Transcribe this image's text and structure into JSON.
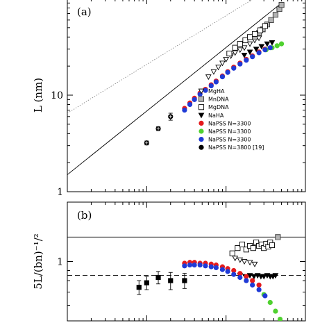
{
  "chart_data": [
    {
      "panel_label": "(a)",
      "type": "scatter",
      "ylabel": "L (nm)",
      "xlabel": "",
      "x_scale": "log",
      "y_scale": "log",
      "xlim": [
        1,
        1000
      ],
      "ylim": [
        1,
        100
      ],
      "y_ticks": [
        "1",
        "10"
      ],
      "grid": false,
      "legend_placement": "center-right",
      "reference_lines": [
        {
          "style": "solid",
          "color": "#000000",
          "points": [
            [
              1,
              1.5
            ],
            [
              500,
              90
            ]
          ]
        },
        {
          "style": "dotted",
          "color": "#888888",
          "points": [
            [
              1,
              6.5
            ],
            [
              270,
              110
            ]
          ]
        }
      ],
      "series": [
        {
          "name": "MgHA",
          "marker": "triangle-down-open",
          "color": "#000000",
          "x": [
            60,
            70,
            80,
            90,
            100,
            115,
            130,
            150,
            170,
            200,
            230,
            260
          ],
          "y": [
            15.5,
            17.5,
            19.5,
            21.5,
            23.5,
            25.5,
            27.5,
            29.5,
            31,
            34,
            37,
            39
          ]
        },
        {
          "name": "MnDNA",
          "marker": "square-hatched",
          "color": "#555555",
          "x": [
            230,
            260,
            290,
            330,
            370,
            420,
            470,
            500
          ],
          "y": [
            40,
            44,
            48,
            54,
            60,
            68,
            78,
            86
          ]
        },
        {
          "name": "MgDNA",
          "marker": "square-open",
          "color": "#000000",
          "x": [
            110,
            130,
            150,
            175,
            200,
            230,
            270,
            310
          ],
          "y": [
            27,
            31,
            34,
            37,
            40,
            43,
            47,
            52
          ]
        },
        {
          "name": "NaHA",
          "marker": "triangle-down-filled",
          "color": "#000000",
          "x": [
            170,
            200,
            240,
            280,
            330,
            380
          ],
          "y": [
            26,
            28,
            30,
            32,
            34,
            35
          ]
        },
        {
          "name": "NaPSS N=3300",
          "marker": "circle-filled",
          "color": "#e41a1c",
          "x": [
            30,
            35,
            40,
            47,
            55,
            65,
            75,
            90,
            105,
            125,
            150,
            180,
            215,
            260,
            310
          ],
          "y": [
            7.3,
            8.3,
            9.3,
            10.5,
            11.5,
            12.8,
            14,
            15.8,
            17.5,
            19.5,
            21.5,
            23.5,
            25.5,
            28,
            30
          ]
        },
        {
          "name": "NaPSS N=3300",
          "marker": "circle-filled",
          "color": "#4fd12f",
          "x": [
            320,
            380,
            440,
            500
          ],
          "y": [
            29.5,
            31,
            32.5,
            34
          ]
        },
        {
          "name": "NaPSS N=3300",
          "marker": "circle-filled",
          "color": "#1f3ad6",
          "x": [
            30,
            35,
            40,
            47,
            55,
            65,
            75,
            90,
            105,
            125,
            150,
            180,
            215,
            260,
            310,
            360
          ],
          "y": [
            7,
            8,
            9,
            10.2,
            11.2,
            12.5,
            13.7,
            15.5,
            17.2,
            19,
            21,
            23,
            25,
            27.5,
            29.5,
            31
          ]
        },
        {
          "name": "NaPSS N=3800 [19]",
          "marker": "circle-filled",
          "color": "#000000",
          "x": [
            10,
            14,
            20
          ],
          "y": [
            3.2,
            4.5,
            6.0
          ],
          "error_y": [
            0.15,
            0.2,
            0.5
          ]
        }
      ]
    },
    {
      "panel_label": "(b)",
      "type": "scatter",
      "ylabel": "5L/(bn)⁻¹/²",
      "xlabel": "",
      "x_scale": "log",
      "y_scale": "log",
      "xlim": [
        1,
        1000
      ],
      "ylim": [
        0.5,
        2
      ],
      "y_ticks": [
        "1"
      ],
      "grid": false,
      "reference_lines": [
        {
          "style": "solid",
          "color": "#000000",
          "y": 1.33
        },
        {
          "style": "dashed",
          "color": "#000000",
          "y": 0.85
        }
      ],
      "series": [
        {
          "name": "MgHA",
          "marker": "triangle-down-open",
          "color": "#000000",
          "x": [
            130,
            150,
            170,
            200,
            230
          ],
          "y": [
            1.04,
            1.02,
            1.0,
            0.99,
            0.97
          ]
        },
        {
          "name": "MnDNA",
          "marker": "square-hatched",
          "color": "#555555",
          "x": [
            450
          ],
          "y": [
            1.33
          ]
        },
        {
          "name": "MgDNA",
          "marker": "square-open",
          "color": "#000000",
          "x": [
            120,
            140,
            160,
            180,
            200,
            220,
            240,
            260,
            280,
            300,
            320,
            340,
            360,
            380
          ],
          "y": [
            1.1,
            1.17,
            1.22,
            1.15,
            1.2,
            1.17,
            1.25,
            1.2,
            1.22,
            1.17,
            1.23,
            1.19,
            1.25,
            1.21
          ]
        },
        {
          "name": "NaHA",
          "marker": "triangle-down-filled",
          "color": "#000000",
          "x": [
            150,
            175,
            200,
            225,
            250,
            275,
            300,
            330,
            360,
            390,
            420
          ],
          "y": [
            0.85,
            0.84,
            0.85,
            0.84,
            0.85,
            0.84,
            0.84,
            0.85,
            0.84,
            0.84,
            0.85
          ]
        },
        {
          "name": "NaPSS N=3300",
          "marker": "circle-filled",
          "color": "#e41a1c",
          "x": [
            30,
            35,
            40,
            47,
            55,
            65,
            75,
            90,
            105,
            125,
            150,
            180,
            215,
            260
          ],
          "y": [
            0.98,
            0.99,
            0.99,
            0.98,
            0.98,
            0.97,
            0.96,
            0.94,
            0.92,
            0.9,
            0.87,
            0.84,
            0.8,
            0.76
          ]
        },
        {
          "name": "NaPSS N=3300",
          "marker": "circle-filled",
          "color": "#4fd12f",
          "x": [
            300,
            360,
            420,
            480
          ],
          "y": [
            0.68,
            0.62,
            0.56,
            0.51
          ]
        },
        {
          "name": "NaPSS N=3300",
          "marker": "circle-filled",
          "color": "#1f3ad6",
          "x": [
            30,
            35,
            40,
            47,
            55,
            65,
            75,
            90,
            105,
            125,
            150,
            180,
            215,
            260,
            310
          ],
          "y": [
            0.95,
            0.96,
            0.96,
            0.96,
            0.95,
            0.94,
            0.93,
            0.91,
            0.89,
            0.86,
            0.83,
            0.8,
            0.76,
            0.72,
            0.67
          ]
        },
        {
          "name": "NaPSS N=3800 [19]",
          "marker": "square-filled",
          "color": "#000000",
          "x": [
            8,
            10,
            14,
            20,
            30
          ],
          "y": [
            0.74,
            0.78,
            0.83,
            0.8,
            0.8
          ],
          "error_y": [
            0.06,
            0.06,
            0.06,
            0.08,
            0.07
          ]
        }
      ]
    }
  ]
}
